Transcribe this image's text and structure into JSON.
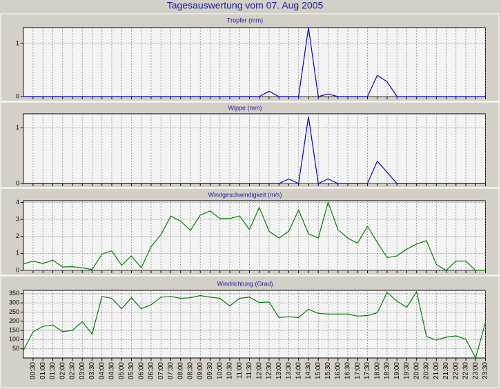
{
  "title": "Tagesauswertung vom 07. Aug 2005",
  "chart_data": [
    {
      "type": "line",
      "title": "Tropfer (mm)",
      "color": "#0000cc",
      "ylim": [
        0,
        1.3
      ],
      "yticks": [
        0,
        1
      ],
      "grid": true,
      "values": [
        0,
        0,
        0,
        0,
        0,
        0,
        0,
        0,
        0,
        0,
        0,
        0,
        0,
        0,
        0,
        0,
        0,
        0,
        0,
        0,
        0,
        0,
        0,
        0,
        0,
        0.1,
        0,
        0,
        0,
        1.3,
        0,
        0.05,
        0,
        0,
        0,
        0,
        0.4,
        0.28,
        0,
        0,
        0,
        0,
        0,
        0,
        0,
        0,
        0,
        0
      ]
    },
    {
      "type": "line",
      "title": "Wippe (mm)",
      "color": "#0000cc",
      "ylim": [
        0,
        1.25
      ],
      "yticks": [
        0,
        1
      ],
      "grid": true,
      "values": [
        0,
        0,
        0,
        0,
        0,
        0,
        0,
        0,
        0,
        0,
        0,
        0,
        0,
        0,
        0,
        0,
        0,
        0,
        0,
        0,
        0,
        0,
        0,
        0,
        0,
        0,
        0,
        0.08,
        0,
        1.2,
        0,
        0.08,
        0,
        0,
        0,
        0,
        0.4,
        0.2,
        0,
        0,
        0,
        0,
        0,
        0,
        0,
        0,
        0,
        0
      ]
    },
    {
      "type": "line",
      "title": "Windgeschwindigkeit (m/s)",
      "color": "#008000",
      "ylim": [
        0,
        4.1
      ],
      "yticks": [
        0,
        1,
        2,
        3,
        4
      ],
      "grid": true,
      "values": [
        0.37,
        0.55,
        0.4,
        0.6,
        0.2,
        0.22,
        0.15,
        0.05,
        0.95,
        1.15,
        0.3,
        0.85,
        0.15,
        1.4,
        2.1,
        3.2,
        2.9,
        2.35,
        3.25,
        3.5,
        3.05,
        3.05,
        3.2,
        2.4,
        3.7,
        2.3,
        1.9,
        2.3,
        3.55,
        2.15,
        1.9,
        4.0,
        2.4,
        1.9,
        1.6,
        2.6,
        1.65,
        0.75,
        0.85,
        1.25,
        1.55,
        1.75,
        0.35,
        0,
        0.55,
        0.55,
        0,
        0
      ]
    },
    {
      "type": "line",
      "title": "Windrichtung (Grad)",
      "color": "#008000",
      "ylim": [
        0,
        368
      ],
      "yticks": [
        50,
        100,
        150,
        200,
        250,
        300,
        350
      ],
      "grid": true,
      "categories": [
        null,
        "00:30",
        "01:00",
        "01:30",
        "02:00",
        "02:30",
        "03:00",
        "03:30",
        "04:00",
        "04:30",
        "05:00",
        "05:30",
        "06:00",
        "06:30",
        "07:00",
        "07:30",
        "08:00",
        "08:30",
        "09:00",
        "09:30",
        "10:00",
        "10:30",
        "11:00",
        "11:30",
        "12:00",
        "12:30",
        "13:00",
        "13:30",
        "14:00",
        "14:30",
        "15:00",
        "15:30",
        "16:00",
        "16:30",
        "17:00",
        "17:30",
        "18:00",
        "18:30",
        "19:00",
        "19:30",
        "20:00",
        "20:30",
        "21:00",
        "21:30",
        "22:00",
        "22:30",
        "23:00",
        "23:30"
      ],
      "values": [
        40,
        143,
        172,
        180,
        143,
        150,
        198,
        130,
        335,
        325,
        268,
        328,
        268,
        290,
        331,
        335,
        325,
        328,
        340,
        331,
        325,
        283,
        325,
        331,
        302,
        305,
        220,
        224,
        220,
        265,
        243,
        239,
        239,
        239,
        228,
        231,
        246,
        357,
        309,
        276,
        361,
        117,
        98,
        113,
        120,
        102,
        0,
        194
      ]
    }
  ]
}
